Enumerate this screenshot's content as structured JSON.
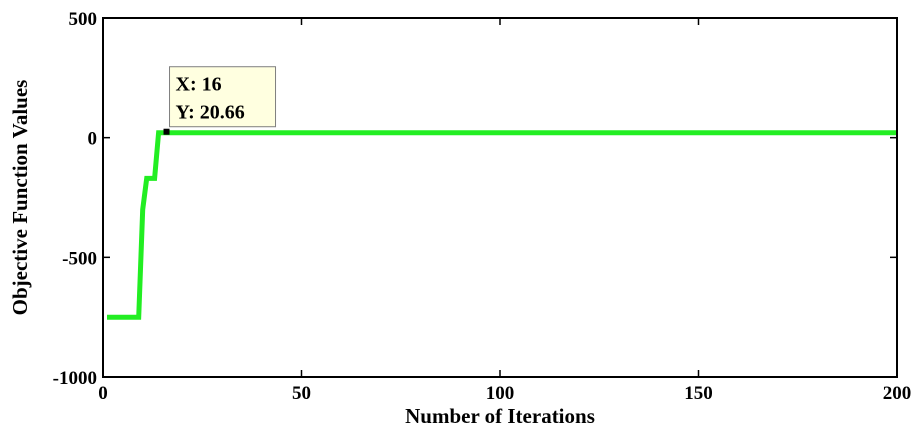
{
  "chart_data": {
    "type": "line",
    "title": "",
    "xlabel": "Number of Iterations",
    "ylabel": "Objective Function Values",
    "xlim": [
      0,
      200
    ],
    "ylim": [
      -1000,
      500
    ],
    "x_ticks": [
      "0",
      "50",
      "100",
      "150",
      "200"
    ],
    "y_ticks": [
      "500",
      "0",
      "-500",
      "-1000"
    ],
    "grid": false,
    "legend": "none",
    "series": [
      {
        "color": "#22ee22",
        "x": [
          1,
          2,
          3,
          4,
          5,
          6,
          7,
          8,
          9,
          10,
          11,
          12,
          13,
          14,
          15,
          16,
          200
        ],
        "y": [
          -750,
          -750,
          -750,
          -750,
          -750,
          -750,
          -750,
          -750,
          -750,
          -300,
          -170,
          -170,
          -170,
          20.66,
          20.66,
          20.66,
          20.66
        ]
      }
    ],
    "data_tip": {
      "x": 16,
      "y": 20.66,
      "x_text": "X: 16",
      "y_text": "Y: 20.66"
    }
  }
}
